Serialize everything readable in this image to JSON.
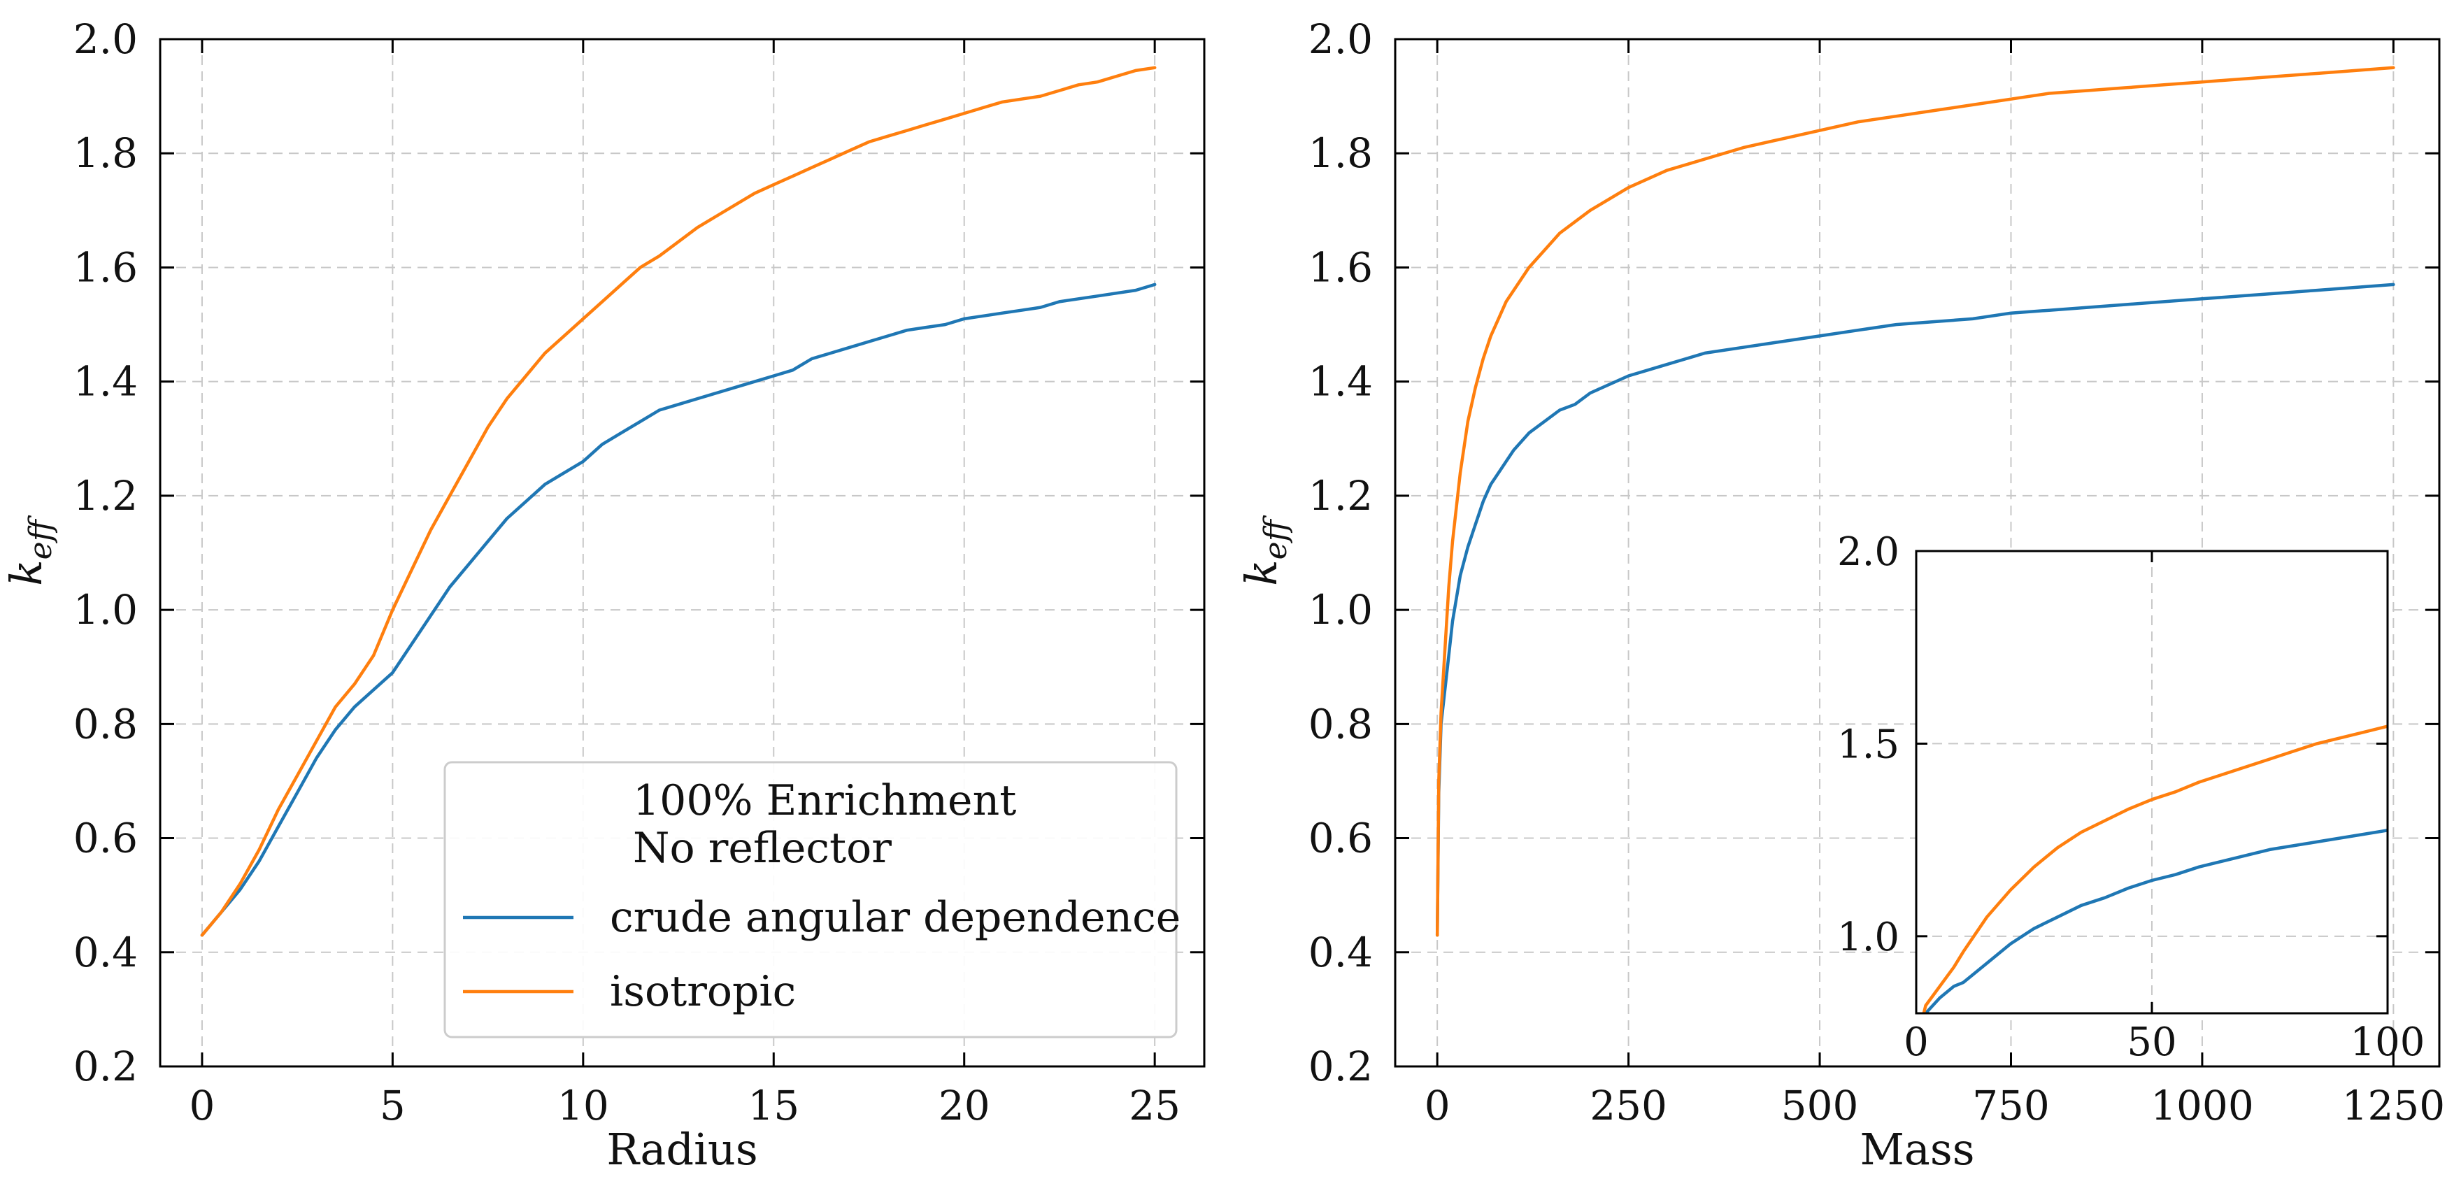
{
  "colors": {
    "blue": "#1f77b4",
    "orange": "#ff7f0e",
    "grid": "#c8c8c8",
    "frame": "#000000"
  },
  "chart_data": [
    {
      "type": "line",
      "xlabel": "Radius",
      "ylabel": "k",
      "ylabel_sub": "eff",
      "xlim": [
        -1.1,
        26.3
      ],
      "ylim": [
        0.2,
        2.0
      ],
      "xticks": [
        0,
        5,
        10,
        15,
        20,
        25
      ],
      "yticks": [
        0.2,
        0.4,
        0.6,
        0.8,
        1.0,
        1.2,
        1.4,
        1.6,
        1.8,
        2.0
      ],
      "xtick_labels": [
        "0",
        "5",
        "10",
        "15",
        "20",
        "25"
      ],
      "ytick_labels": [
        "0.2",
        "0.4",
        "0.6",
        "0.8",
        "1.0",
        "1.2",
        "1.4",
        "1.6",
        "1.8",
        "2.0"
      ],
      "grid": true,
      "legend": {
        "placement": "lower-right",
        "title_lines": [
          "100% Enrichment",
          "No reflector"
        ],
        "entries": [
          "crude angular dependence",
          "isotropic"
        ]
      },
      "series": [
        {
          "name": "crude angular dependence",
          "color": "blue",
          "x": [
            0,
            0.5,
            1,
            1.5,
            2,
            2.5,
            3,
            3.5,
            4,
            4.5,
            5,
            5.5,
            6,
            6.5,
            7,
            7.5,
            8,
            8.5,
            9,
            9.5,
            10,
            10.5,
            11,
            11.5,
            12,
            12.5,
            13,
            13.5,
            14,
            14.5,
            15,
            15.5,
            16,
            16.5,
            17,
            17.5,
            18,
            18.5,
            19,
            19.5,
            20,
            20.5,
            21,
            21.5,
            22,
            22.5,
            23,
            23.5,
            24,
            24.5,
            25
          ],
          "y": [
            0.43,
            0.47,
            0.51,
            0.56,
            0.62,
            0.68,
            0.74,
            0.79,
            0.83,
            0.86,
            0.89,
            0.94,
            0.99,
            1.04,
            1.08,
            1.12,
            1.16,
            1.19,
            1.22,
            1.24,
            1.26,
            1.29,
            1.31,
            1.33,
            1.35,
            1.36,
            1.37,
            1.38,
            1.39,
            1.4,
            1.41,
            1.42,
            1.44,
            1.45,
            1.46,
            1.47,
            1.48,
            1.49,
            1.495,
            1.5,
            1.51,
            1.515,
            1.52,
            1.525,
            1.53,
            1.54,
            1.545,
            1.55,
            1.555,
            1.56,
            1.57
          ]
        },
        {
          "name": "isotropic",
          "color": "orange",
          "x": [
            0,
            0.5,
            1,
            1.5,
            2,
            2.5,
            3,
            3.5,
            4,
            4.5,
            5,
            5.5,
            6,
            6.5,
            7,
            7.5,
            8,
            8.5,
            9,
            9.5,
            10,
            10.5,
            11,
            11.5,
            12,
            12.5,
            13,
            13.5,
            14,
            14.5,
            15,
            15.5,
            16,
            16.5,
            17,
            17.5,
            18,
            18.5,
            19,
            19.5,
            20,
            20.5,
            21,
            21.5,
            22,
            22.5,
            23,
            23.5,
            24,
            24.5,
            25
          ],
          "y": [
            0.43,
            0.47,
            0.52,
            0.58,
            0.65,
            0.71,
            0.77,
            0.83,
            0.87,
            0.92,
            1.0,
            1.07,
            1.14,
            1.2,
            1.26,
            1.32,
            1.37,
            1.41,
            1.45,
            1.48,
            1.51,
            1.54,
            1.57,
            1.6,
            1.62,
            1.645,
            1.67,
            1.69,
            1.71,
            1.73,
            1.745,
            1.76,
            1.775,
            1.79,
            1.805,
            1.82,
            1.83,
            1.84,
            1.85,
            1.86,
            1.87,
            1.88,
            1.89,
            1.895,
            1.9,
            1.91,
            1.92,
            1.925,
            1.935,
            1.945,
            1.95
          ]
        }
      ]
    },
    {
      "type": "line",
      "xlabel": "Mass",
      "ylabel": "k",
      "ylabel_sub": "eff",
      "xlim": [
        -55,
        1310
      ],
      "ylim": [
        0.2,
        2.0
      ],
      "xticks": [
        0,
        250,
        500,
        750,
        1000,
        1250
      ],
      "yticks": [
        0.2,
        0.4,
        0.6,
        0.8,
        1.0,
        1.2,
        1.4,
        1.6,
        1.8,
        2.0
      ],
      "xtick_labels": [
        "0",
        "250",
        "500",
        "750",
        "1000",
        "1250"
      ],
      "ytick_labels": [
        "0.2",
        "0.4",
        "0.6",
        "0.8",
        "1.0",
        "1.2",
        "1.4",
        "1.6",
        "1.8",
        "2.0"
      ],
      "grid": true,
      "series": [
        {
          "color": "blue",
          "x": [
            0,
            2,
            5,
            10,
            15,
            20,
            30,
            40,
            50,
            60,
            70,
            80,
            90,
            100,
            120,
            140,
            160,
            180,
            200,
            250,
            300,
            350,
            400,
            450,
            500,
            550,
            600,
            650,
            700,
            750,
            800,
            850,
            900,
            950,
            1000,
            1050,
            1100,
            1150,
            1200,
            1250
          ],
          "y": [
            0.43,
            0.68,
            0.8,
            0.86,
            0.92,
            0.98,
            1.06,
            1.11,
            1.15,
            1.19,
            1.22,
            1.24,
            1.26,
            1.28,
            1.31,
            1.33,
            1.35,
            1.36,
            1.38,
            1.41,
            1.43,
            1.45,
            1.46,
            1.47,
            1.48,
            1.49,
            1.5,
            1.505,
            1.51,
            1.52,
            1.525,
            1.53,
            1.535,
            1.54,
            1.545,
            1.55,
            1.555,
            1.56,
            1.565,
            1.57
          ]
        },
        {
          "color": "orange",
          "x": [
            0,
            2,
            5,
            10,
            15,
            20,
            30,
            40,
            50,
            60,
            70,
            80,
            90,
            100,
            120,
            140,
            160,
            180,
            200,
            250,
            300,
            350,
            400,
            450,
            500,
            550,
            600,
            650,
            700,
            750,
            800,
            850,
            900,
            950,
            1000,
            1050,
            1100,
            1150,
            1200,
            1250
          ],
          "y": [
            0.43,
            0.7,
            0.82,
            0.93,
            1.04,
            1.12,
            1.24,
            1.33,
            1.39,
            1.44,
            1.48,
            1.51,
            1.54,
            1.56,
            1.6,
            1.63,
            1.66,
            1.68,
            1.7,
            1.74,
            1.77,
            1.79,
            1.81,
            1.825,
            1.84,
            1.855,
            1.865,
            1.875,
            1.885,
            1.895,
            1.905,
            1.91,
            1.915,
            1.92,
            1.925,
            1.93,
            1.935,
            1.94,
            1.945,
            1.95
          ]
        }
      ]
    },
    {
      "type": "line",
      "placement": "inset lower-right of second chart",
      "xlim": [
        0,
        100
      ],
      "ylim": [
        0.8,
        2.0
      ],
      "xticks": [
        0,
        50,
        100
      ],
      "yticks": [
        1.0,
        1.5,
        2.0
      ],
      "xtick_labels": [
        "0",
        "50",
        "100"
      ],
      "ytick_labels": [
        "1.0",
        "1.5",
        "2.0"
      ],
      "grid": true,
      "series": [
        {
          "color": "blue",
          "x": [
            0,
            2,
            5,
            8,
            10,
            15,
            20,
            25,
            30,
            35,
            40,
            45,
            50,
            55,
            60,
            65,
            70,
            75,
            80,
            85,
            90,
            95,
            100
          ],
          "y": [
            0.72,
            0.8,
            0.84,
            0.87,
            0.88,
            0.93,
            0.98,
            1.02,
            1.05,
            1.08,
            1.1,
            1.125,
            1.145,
            1.16,
            1.18,
            1.195,
            1.21,
            1.225,
            1.235,
            1.245,
            1.255,
            1.265,
            1.275
          ]
        },
        {
          "color": "orange",
          "x": [
            0,
            2,
            5,
            8,
            10,
            15,
            20,
            25,
            30,
            35,
            40,
            45,
            50,
            55,
            60,
            65,
            70,
            75,
            80,
            85,
            90,
            95,
            100
          ],
          "y": [
            0.72,
            0.82,
            0.87,
            0.92,
            0.96,
            1.05,
            1.12,
            1.18,
            1.23,
            1.27,
            1.3,
            1.33,
            1.355,
            1.375,
            1.4,
            1.42,
            1.44,
            1.46,
            1.48,
            1.5,
            1.515,
            1.53,
            1.545
          ]
        }
      ]
    }
  ]
}
